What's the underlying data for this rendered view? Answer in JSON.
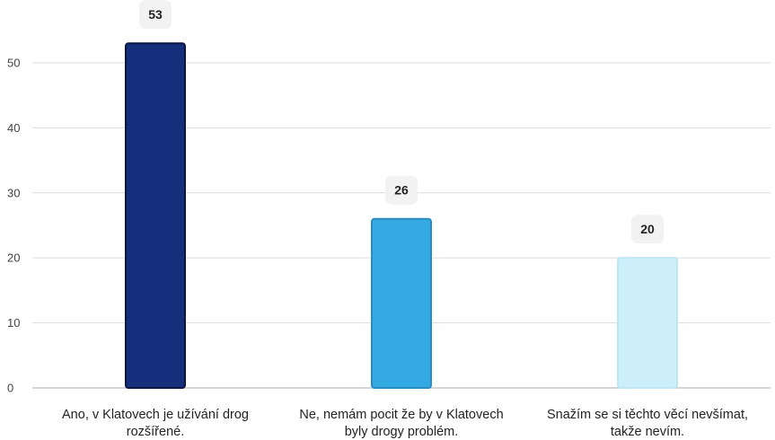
{
  "chart_data": {
    "type": "bar",
    "categories": [
      [
        "Ano, v Klatovech je užívání drog",
        "rozšířené."
      ],
      [
        "Ne, nemám pocit že by v Klatovech",
        "byly drogy problém."
      ],
      [
        "Snažím se si těchto věcí nevšímat,",
        "takže nevím."
      ]
    ],
    "values": [
      53,
      26,
      20
    ],
    "value_labels": [
      "53",
      "26",
      "20"
    ],
    "colors": [
      "#152f7c",
      "#35a9e3",
      "#cdeffa"
    ],
    "outline_colors": [
      "#0a1745",
      "#2a8cc0",
      "#bfe6f5"
    ],
    "ylim": [
      0,
      58
    ],
    "yticks": [
      0,
      10,
      20,
      30,
      40,
      50
    ],
    "ytick_labels": [
      "0",
      "10",
      "20",
      "30",
      "40",
      "50"
    ],
    "grid": true,
    "legend": "none"
  }
}
